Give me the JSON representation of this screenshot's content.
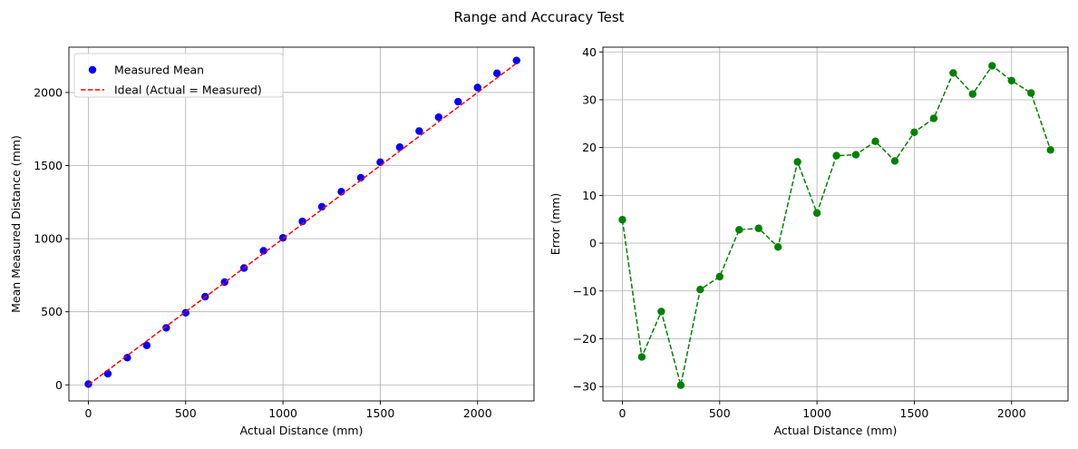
{
  "suptitle": "Range and Accuracy Test",
  "colors": {
    "points": "#0000ff",
    "ideal": "#ff0000",
    "error": "#008000",
    "grid": "#b0b0b0",
    "axes": "#000000"
  },
  "chart_data": [
    {
      "type": "scatter",
      "xlabel": "Actual Distance (mm)",
      "ylabel": "Mean Measured Distance (mm)",
      "xlim": [
        -100,
        2290
      ],
      "ylim": [
        -110,
        2310
      ],
      "xticks": [
        0,
        500,
        1000,
        1500,
        2000
      ],
      "yticks": [
        0,
        500,
        1000,
        1500,
        2000
      ],
      "grid": true,
      "legend_position": "top-left",
      "x": [
        0,
        100,
        200,
        300,
        400,
        500,
        600,
        700,
        800,
        900,
        1000,
        1100,
        1200,
        1300,
        1400,
        1500,
        1600,
        1700,
        1800,
        1900,
        2000,
        2100,
        2200
      ],
      "series": [
        {
          "name": "Measured Mean",
          "style": "points",
          "color": "#0000ff",
          "values": [
            5,
            76,
            186,
            270,
            390,
            493,
            603,
            703,
            799,
            917,
            1006,
            1118,
            1218,
            1321,
            1417,
            1523,
            1626,
            1736,
            1831,
            1937,
            2034,
            2131,
            2219
          ]
        },
        {
          "name": "Ideal (Actual = Measured)",
          "style": "dashed-line",
          "color": "#ff0000",
          "values": [
            0,
            100,
            200,
            300,
            400,
            500,
            600,
            700,
            800,
            900,
            1000,
            1100,
            1200,
            1300,
            1400,
            1500,
            1600,
            1700,
            1800,
            1900,
            2000,
            2100,
            2200
          ]
        }
      ]
    },
    {
      "type": "line",
      "xlabel": "Actual Distance (mm)",
      "ylabel": "Error (mm)",
      "xlim": [
        -100,
        2290
      ],
      "ylim": [
        -33,
        41
      ],
      "xticks": [
        0,
        500,
        1000,
        1500,
        2000
      ],
      "yticks": [
        -30,
        -20,
        -10,
        0,
        10,
        20,
        30,
        40
      ],
      "grid": true,
      "x": [
        0,
        100,
        200,
        300,
        400,
        500,
        600,
        700,
        800,
        900,
        1000,
        1100,
        1200,
        1300,
        1400,
        1500,
        1600,
        1700,
        1800,
        1900,
        2000,
        2100,
        2200
      ],
      "series": [
        {
          "style": "dashed-line-markers",
          "color": "#008000",
          "values": [
            4.9,
            -23.8,
            -14.3,
            -29.7,
            -9.7,
            -7.0,
            2.8,
            3.1,
            -0.8,
            17.0,
            6.3,
            18.3,
            18.5,
            21.3,
            17.2,
            23.2,
            26.1,
            35.6,
            31.2,
            37.1,
            34.0,
            31.4,
            19.5
          ]
        }
      ]
    }
  ]
}
